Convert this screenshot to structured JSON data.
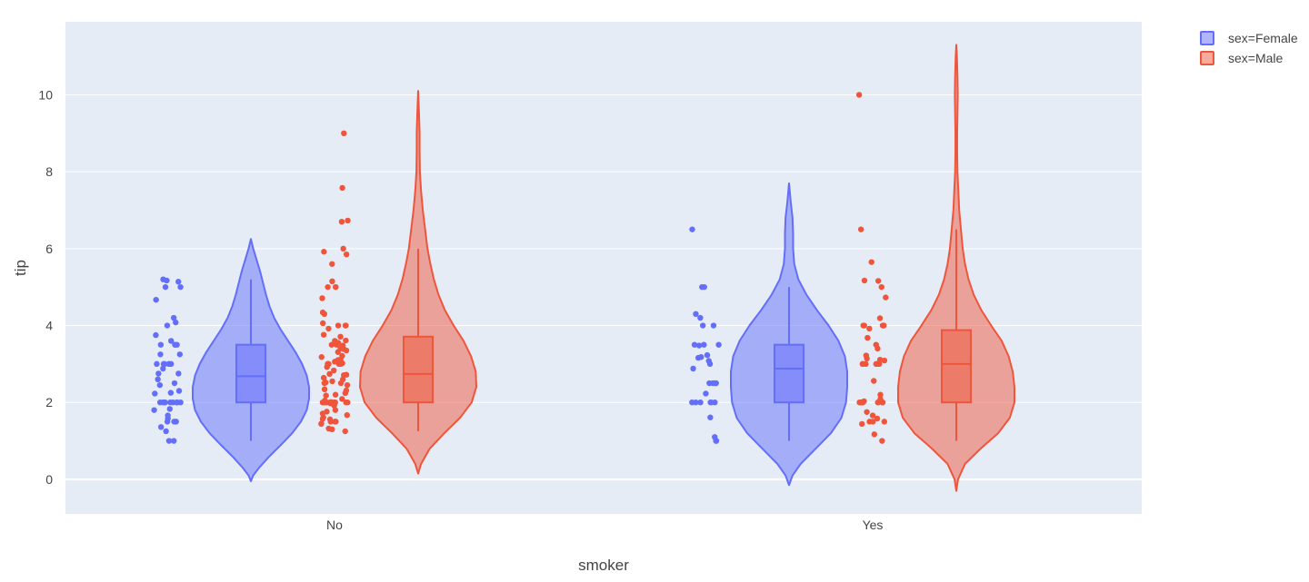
{
  "chart_data": {
    "type": "violin",
    "xlabel": "smoker",
    "ylabel": "tip",
    "categories": [
      "No",
      "Yes"
    ],
    "ylim": [
      -0.9,
      11.9
    ],
    "yticks": [
      0,
      2,
      4,
      6,
      8,
      10
    ],
    "grid": true,
    "legend_position": "top-right",
    "colors": {
      "plot_bg": "#E5ECF6",
      "grid": "#FFFFFF",
      "female": "#636EFA",
      "male": "#EF553B"
    },
    "series": [
      {
        "name": "sex=Female",
        "color": "#636EFA",
        "groups": [
          {
            "category": "No",
            "box": {
              "min": 1.0,
              "q1": 2.0,
              "median": 2.68,
              "q3": 3.5,
              "max": 5.2
            },
            "kde_span": [
              -0.05,
              6.25
            ],
            "density": [
              [
                -0.05,
                0.0
              ],
              [
                0.1,
                0.04
              ],
              [
                0.3,
                0.14
              ],
              [
                0.6,
                0.32
              ],
              [
                0.9,
                0.52
              ],
              [
                1.2,
                0.71
              ],
              [
                1.5,
                0.86
              ],
              [
                1.8,
                0.96
              ],
              [
                2.1,
                1.0
              ],
              [
                2.4,
                1.0
              ],
              [
                2.7,
                0.96
              ],
              [
                3.0,
                0.88
              ],
              [
                3.3,
                0.77
              ],
              [
                3.6,
                0.64
              ],
              [
                3.9,
                0.51
              ],
              [
                4.2,
                0.4
              ],
              [
                4.5,
                0.32
              ],
              [
                4.8,
                0.26
              ],
              [
                5.1,
                0.21
              ],
              [
                5.4,
                0.16
              ],
              [
                5.7,
                0.1
              ],
              [
                6.0,
                0.04
              ],
              [
                6.25,
                0.0
              ]
            ],
            "points": [
              1.0,
              1.0,
              1.25,
              1.36,
              1.5,
              1.5,
              1.5,
              1.58,
              1.66,
              1.8,
              1.83,
              2.0,
              2.0,
              2.0,
              2.0,
              2.0,
              2.0,
              2.0,
              2.0,
              2.0,
              2.0,
              2.23,
              2.25,
              2.3,
              2.45,
              2.5,
              2.6,
              2.75,
              2.75,
              2.88,
              3.0,
              3.0,
              3.0,
              3.0,
              3.0,
              3.0,
              3.25,
              3.25,
              3.5,
              3.5,
              3.5,
              3.6,
              3.75,
              4.0,
              4.08,
              4.2,
              4.67,
              5.0,
              5.0,
              5.14,
              5.17,
              5.2
            ]
          },
          {
            "category": "Yes",
            "box": {
              "min": 1.0,
              "q1": 2.0,
              "median": 2.88,
              "q3": 3.5,
              "max": 5.0
            },
            "kde_span": [
              -0.15,
              7.7
            ],
            "density": [
              [
                -0.15,
                0.0
              ],
              [
                0.1,
                0.06
              ],
              [
                0.4,
                0.2
              ],
              [
                0.8,
                0.46
              ],
              [
                1.2,
                0.72
              ],
              [
                1.6,
                0.9
              ],
              [
                2.0,
                0.98
              ],
              [
                2.4,
                1.0
              ],
              [
                2.8,
                1.0
              ],
              [
                3.2,
                0.96
              ],
              [
                3.6,
                0.85
              ],
              [
                4.0,
                0.68
              ],
              [
                4.4,
                0.48
              ],
              [
                4.8,
                0.3
              ],
              [
                5.2,
                0.16
              ],
              [
                5.6,
                0.09
              ],
              [
                6.0,
                0.07
              ],
              [
                6.4,
                0.07
              ],
              [
                6.8,
                0.06
              ],
              [
                7.2,
                0.03
              ],
              [
                7.7,
                0.0
              ]
            ],
            "points": [
              1.0,
              1.0,
              1.1,
              1.61,
              2.0,
              2.0,
              2.0,
              2.0,
              2.0,
              2.0,
              2.23,
              2.5,
              2.5,
              2.5,
              2.5,
              2.5,
              2.88,
              3.0,
              3.08,
              3.16,
              3.18,
              3.23,
              3.48,
              3.5,
              3.5,
              3.5,
              4.0,
              4.0,
              4.2,
              4.3,
              5.0,
              5.0,
              6.5
            ]
          }
        ]
      },
      {
        "name": "sex=Male",
        "color": "#EF553B",
        "groups": [
          {
            "category": "No",
            "box": {
              "min": 1.25,
              "q1": 2.0,
              "median": 2.74,
              "q3": 3.71,
              "max": 6.0
            },
            "kde_span": [
              0.15,
              10.1
            ],
            "density": [
              [
                0.15,
                0.0
              ],
              [
                0.4,
                0.05
              ],
              [
                0.8,
                0.2
              ],
              [
                1.2,
                0.45
              ],
              [
                1.6,
                0.72
              ],
              [
                2.0,
                0.92
              ],
              [
                2.4,
                1.0
              ],
              [
                2.8,
                0.99
              ],
              [
                3.2,
                0.91
              ],
              [
                3.6,
                0.78
              ],
              [
                4.0,
                0.61
              ],
              [
                4.4,
                0.46
              ],
              [
                4.8,
                0.35
              ],
              [
                5.2,
                0.27
              ],
              [
                5.6,
                0.21
              ],
              [
                6.0,
                0.16
              ],
              [
                6.5,
                0.12
              ],
              [
                7.0,
                0.08
              ],
              [
                7.5,
                0.05
              ],
              [
                8.0,
                0.03
              ],
              [
                8.5,
                0.025
              ],
              [
                9.0,
                0.025
              ],
              [
                9.5,
                0.015
              ],
              [
                10.1,
                0.0
              ]
            ],
            "points": [
              1.25,
              1.3,
              1.32,
              1.44,
              1.45,
              1.5,
              1.5,
              1.5,
              1.56,
              1.57,
              1.61,
              1.67,
              1.71,
              1.76,
              1.8,
              1.92,
              1.98,
              2.0,
              2.0,
              2.0,
              2.0,
              2.0,
              2.0,
              2.0,
              2.0,
              2.0,
              2.0,
              2.0,
              2.0,
              2.01,
              2.05,
              2.09,
              2.18,
              2.2,
              2.24,
              2.31,
              2.34,
              2.45,
              2.5,
              2.5,
              2.52,
              2.55,
              2.6,
              2.64,
              2.71,
              2.72,
              2.74,
              2.83,
              2.92,
              3.0,
              3.0,
              3.0,
              3.0,
              3.0,
              3.02,
              3.06,
              3.1,
              3.12,
              3.18,
              3.21,
              3.31,
              3.35,
              3.39,
              3.4,
              3.41,
              3.48,
              3.5,
              3.5,
              3.55,
              3.6,
              3.61,
              3.71,
              3.76,
              3.92,
              4.0,
              4.0,
              4.0,
              4.06,
              4.3,
              4.34,
              4.71,
              5.0,
              5.0,
              5.0,
              5.15,
              5.6,
              5.85,
              5.92,
              6.0,
              6.7,
              6.73,
              7.58,
              9.0
            ]
          },
          {
            "category": "Yes",
            "box": {
              "min": 1.0,
              "q1": 2.0,
              "median": 3.0,
              "q3": 3.88,
              "max": 6.5
            },
            "kde_span": [
              -0.3,
              11.3
            ],
            "density": [
              [
                -0.3,
                0.0
              ],
              [
                0.0,
                0.03
              ],
              [
                0.4,
                0.15
              ],
              [
                0.8,
                0.42
              ],
              [
                1.2,
                0.72
              ],
              [
                1.6,
                0.92
              ],
              [
                2.0,
                1.0
              ],
              [
                2.4,
                1.0
              ],
              [
                2.8,
                0.97
              ],
              [
                3.2,
                0.9
              ],
              [
                3.6,
                0.78
              ],
              [
                4.0,
                0.6
              ],
              [
                4.4,
                0.43
              ],
              [
                4.8,
                0.3
              ],
              [
                5.2,
                0.21
              ],
              [
                5.6,
                0.15
              ],
              [
                6.0,
                0.11
              ],
              [
                6.5,
                0.08
              ],
              [
                7.0,
                0.05
              ],
              [
                7.5,
                0.035
              ],
              [
                8.0,
                0.02
              ],
              [
                8.5,
                0.015
              ],
              [
                9.0,
                0.015
              ],
              [
                9.5,
                0.02
              ],
              [
                10.0,
                0.025
              ],
              [
                10.5,
                0.02
              ],
              [
                11.0,
                0.01
              ],
              [
                11.3,
                0.0
              ]
            ],
            "points": [
              1.0,
              1.17,
              1.44,
              1.5,
              1.5,
              1.5,
              1.58,
              1.66,
              1.75,
              2.0,
              2.0,
              2.0,
              2.0,
              2.0,
              2.0,
              2.0,
              2.0,
              2.0,
              2.0,
              2.03,
              2.09,
              2.2,
              2.56,
              3.0,
              3.0,
              3.0,
              3.0,
              3.0,
              3.0,
              3.0,
              3.0,
              3.09,
              3.11,
              3.14,
              3.22,
              3.4,
              3.5,
              3.68,
              3.92,
              4.0,
              4.0,
              4.0,
              4.0,
              4.0,
              4.19,
              4.73,
              5.0,
              5.16,
              5.17,
              5.65,
              6.5,
              10.0
            ]
          }
        ]
      }
    ]
  }
}
